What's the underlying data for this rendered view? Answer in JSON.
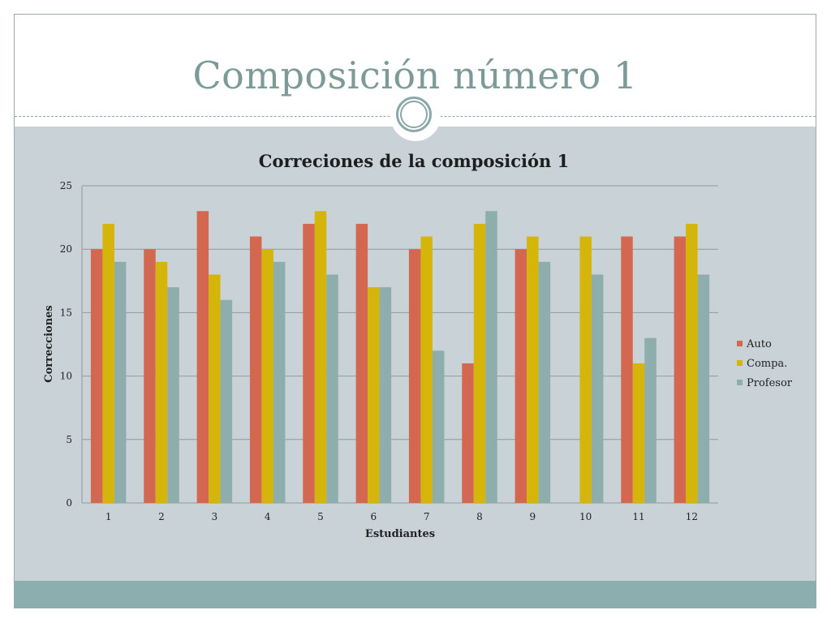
{
  "slide": {
    "title": "Composición número 1"
  },
  "chart_data": {
    "type": "bar",
    "title": "Correciones de la composición 1",
    "xlabel": "Estudiantes",
    "ylabel": "Correcciones",
    "ylim": [
      0,
      25
    ],
    "yticks": [
      "0",
      "5",
      "10",
      "15",
      "20",
      "25"
    ],
    "categories": [
      "1",
      "2",
      "3",
      "4",
      "5",
      "6",
      "7",
      "8",
      "9",
      "10",
      "11",
      "12"
    ],
    "grid": true,
    "legend_position": "right",
    "series": [
      {
        "name": "Auto",
        "color": "#d4674f",
        "values": [
          20,
          20,
          23,
          21,
          22,
          22,
          20,
          11,
          20,
          0,
          21,
          21
        ]
      },
      {
        "name": "Compa.",
        "color": "#d5b50a",
        "values": [
          22,
          19,
          18,
          20,
          23,
          17,
          21,
          22,
          21,
          21,
          11,
          22
        ]
      },
      {
        "name": "Profesor",
        "color": "#8ead ad",
        "values": [
          19,
          17,
          16,
          19,
          18,
          17,
          12,
          23,
          19,
          18,
          13,
          18
        ]
      }
    ]
  }
}
